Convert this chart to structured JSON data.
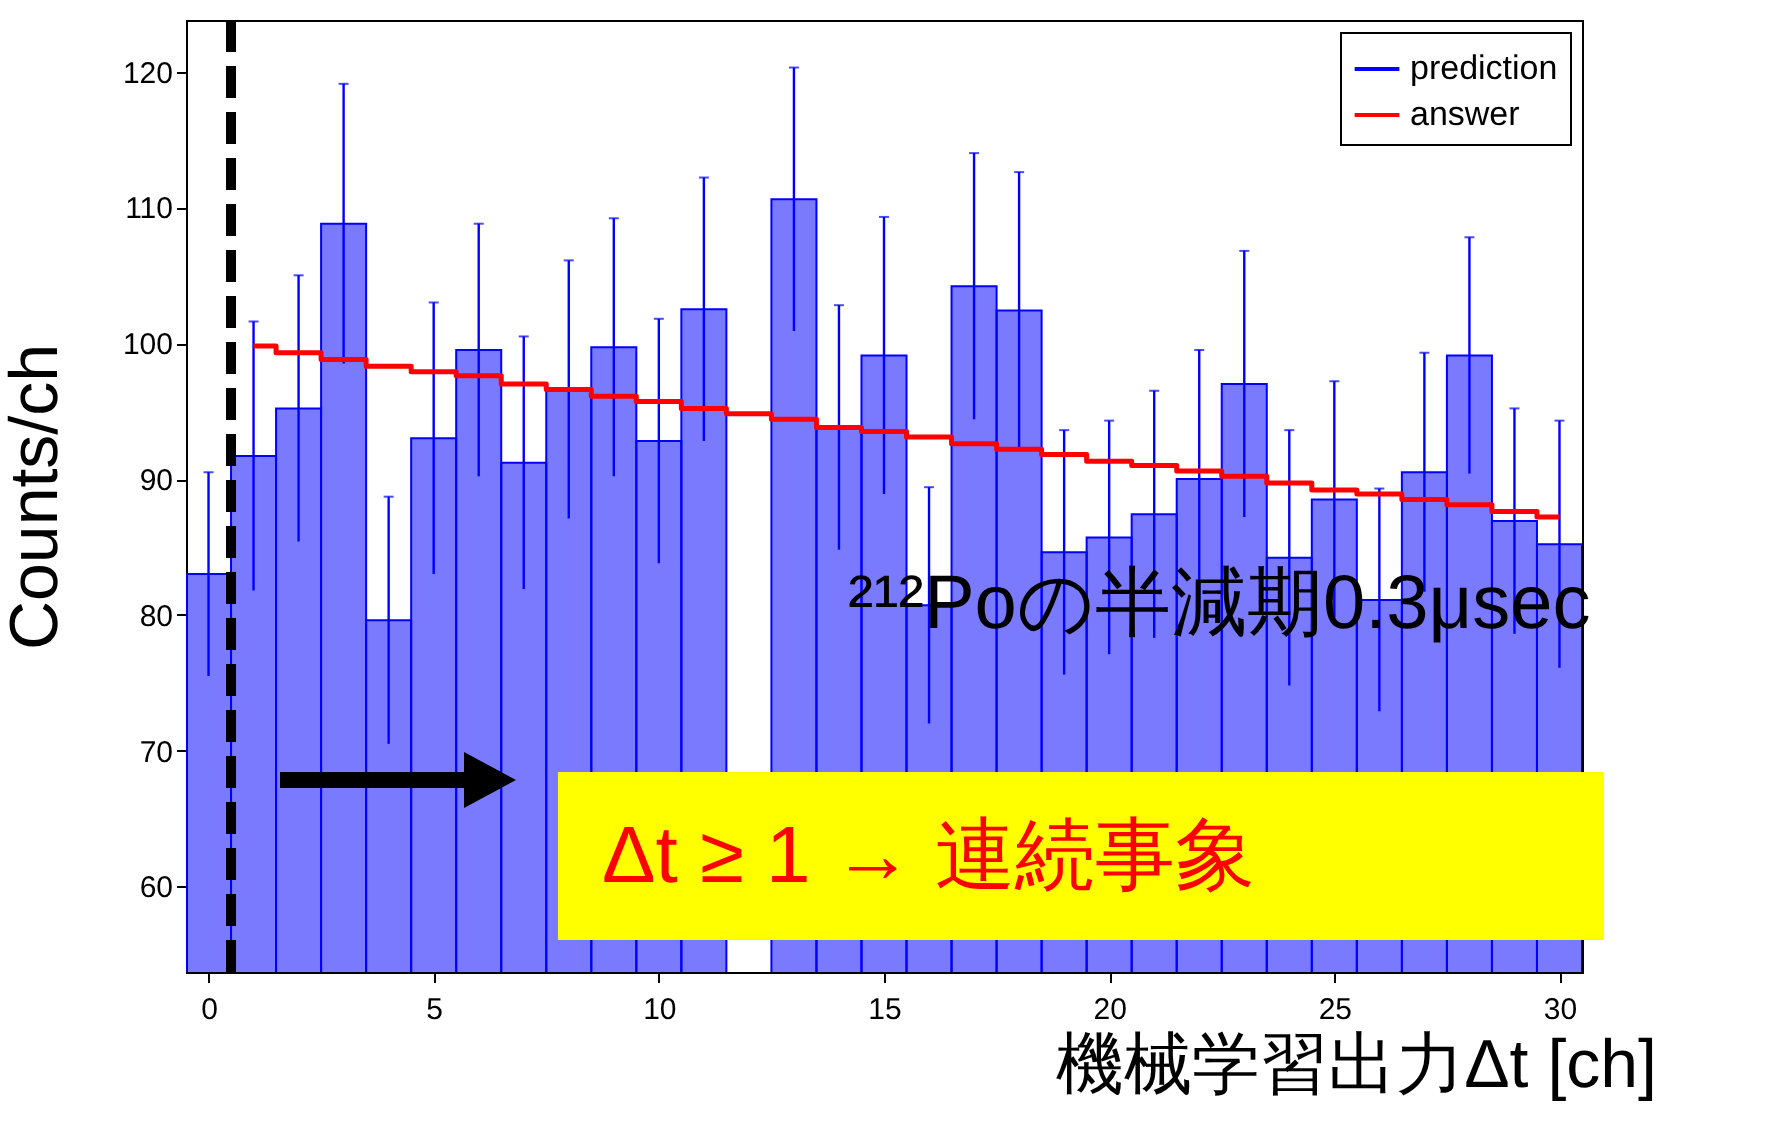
{
  "chart_data": {
    "type": "histogram",
    "xlabel": "機械学習出力Δt [ch]",
    "ylabel": "Counts/ch",
    "bins": [
      -0.5,
      0.5,
      1.5,
      2.5,
      3.5,
      4.5,
      5.5,
      6.5,
      7.5,
      8.5,
      9.5,
      10.5,
      11.5,
      12.5,
      13.5,
      14.5,
      15.5,
      16.5,
      17.5,
      18.5,
      19.5,
      20.5,
      21.5,
      22.5,
      23.5,
      24.5,
      25.5,
      26.5,
      27.5,
      28.5,
      29.5,
      30.5
    ],
    "series": [
      {
        "name": "prediction",
        "color": "#0000ff",
        "values": [
          83,
          91.7,
          95.2,
          108.8,
          79.6,
          93,
          99.5,
          91.2,
          96.6,
          99.7,
          92.8,
          102.5,
          null,
          110.6,
          93.8,
          99.1,
          80.7,
          104.2,
          102.4,
          84.6,
          85.7,
          87.4,
          90,
          97,
          84.2,
          88.5,
          81.1,
          90.5,
          99.1,
          86.9,
          85.2
        ],
        "errors": [
          7.5,
          9.9,
          9.8,
          10.3,
          9.1,
          10,
          9.3,
          9.3,
          9.5,
          9.5,
          9,
          9.7,
          null,
          9.7,
          9,
          10.2,
          8.7,
          9.8,
          10.2,
          9,
          8.6,
          9.1,
          9.5,
          9.8,
          9.4,
          8.7,
          8.2,
          8.8,
          8.7,
          8.3,
          9.1
        ]
      },
      {
        "name": "answer",
        "type": "step",
        "color": "#ff0000",
        "x": [
          1,
          2,
          3,
          4,
          5,
          6,
          7,
          8,
          9,
          10,
          11,
          12,
          13,
          14,
          15,
          16,
          17,
          18,
          19,
          20,
          21,
          22,
          23,
          24,
          25,
          26,
          27,
          28,
          29,
          30
        ],
        "values": [
          99.8,
          99.3,
          98.8,
          98.3,
          97.9,
          97.6,
          97,
          96.6,
          96.1,
          95.7,
          95.2,
          94.8,
          94.4,
          93.8,
          93.5,
          93.1,
          92.6,
          92.2,
          91.8,
          91.3,
          91,
          90.6,
          90.2,
          89.7,
          89.2,
          88.9,
          88.5,
          88.1,
          87.6,
          87.2
        ]
      }
    ],
    "xlim": [
      -0.5,
      30.5
    ],
    "ylim": [
      53.7,
      123.8
    ],
    "xticks": [
      0,
      5,
      10,
      15,
      20,
      25,
      30
    ],
    "yticks": [
      60,
      70,
      80,
      90,
      100,
      110,
      120
    ],
    "ref_lines": [
      {
        "axis": "x",
        "value": 0.5,
        "color": "#000000",
        "line_style": "dashed"
      }
    ],
    "annotations": [
      "²¹²Poの半減期0.3μsec",
      "Δt ≥ 1 → 連続事象"
    ],
    "legend": "top right",
    "grid": false
  }
}
